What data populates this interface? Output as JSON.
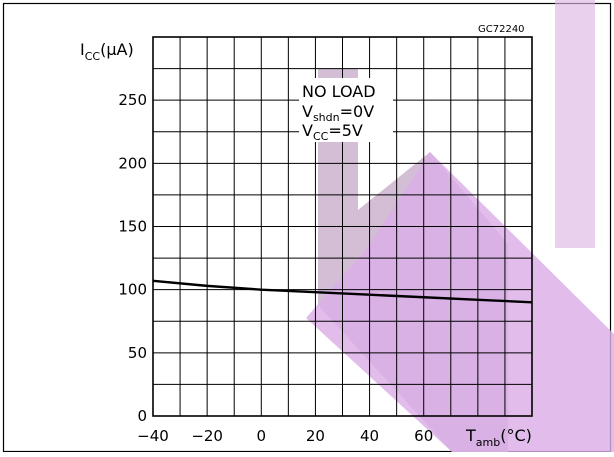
{
  "figure_code": "GC72240",
  "colors": {
    "curve": "#000000",
    "grid": "#000000",
    "watermark_dark": "#cdb5cf",
    "watermark_light": "#dcaee8"
  },
  "annotation": {
    "line1": "NO  LOAD",
    "line2_main": "V",
    "line2_sub": "shdn",
    "line2_rest": "=0V",
    "line3_main": "V",
    "line3_sub": "CC",
    "line3_rest": "=5V"
  },
  "chart_data": {
    "type": "line",
    "title": "",
    "ylabel": {
      "main": "I",
      "sub": "CC",
      "unit": "(μA)"
    },
    "xlabel": {
      "main": "T",
      "sub": "amb",
      "unit": "(°C)"
    },
    "xlim": [
      -40,
      100
    ],
    "ylim": [
      0,
      300
    ],
    "x_ticks": [
      -40,
      -20,
      0,
      20,
      40,
      60
    ],
    "x_tick_labels": [
      "−40",
      "−20",
      "0",
      "20",
      "40",
      "60"
    ],
    "y_ticks": [
      0,
      50,
      100,
      150,
      200,
      250
    ],
    "y_tick_labels": [
      "0",
      "50",
      "100",
      "150",
      "200",
      "250"
    ],
    "grid": true,
    "series": [
      {
        "x": [
          -40,
          -20,
          0,
          20,
          40,
          60,
          80,
          100
        ],
        "y": [
          107,
          103,
          100,
          98,
          96,
          94,
          92,
          90
        ]
      }
    ]
  }
}
